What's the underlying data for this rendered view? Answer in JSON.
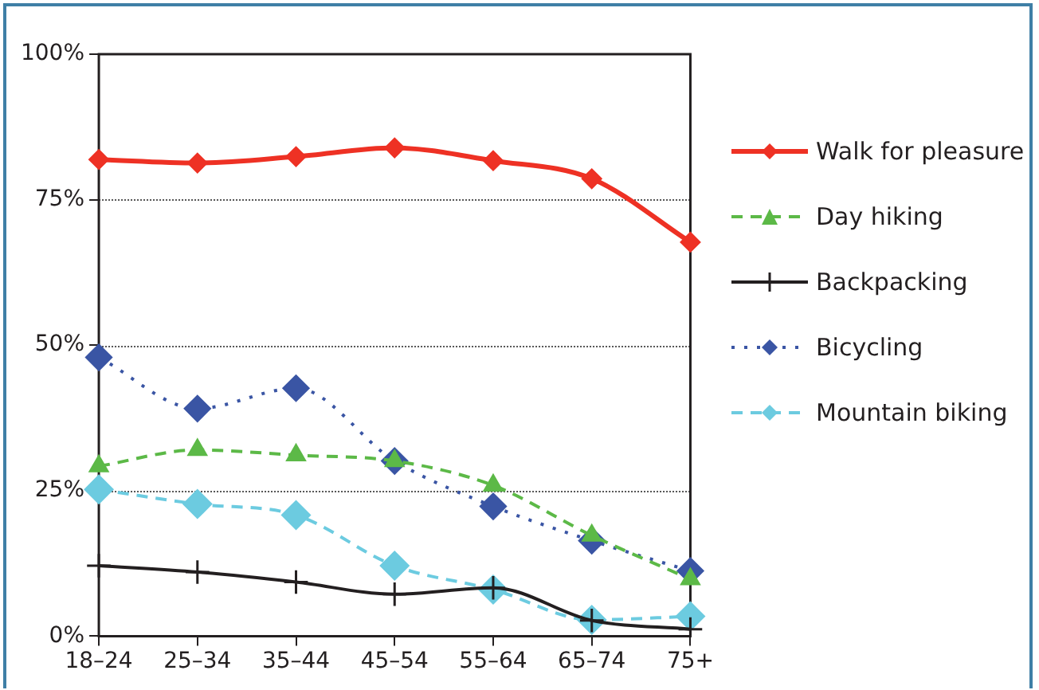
{
  "chart_data": {
    "type": "line",
    "categories": [
      "18–24",
      "25–34",
      "35–44",
      "45–54",
      "55–64",
      "65–74",
      "75+"
    ],
    "series": [
      {
        "name": "Walk for pleasure",
        "color": "#ee3124",
        "marker": "diamond",
        "line_style": "solid",
        "values": [
          81.9,
          81.3,
          82.4,
          83.9,
          81.7,
          78.6,
          67.7
        ]
      },
      {
        "name": "Day hiking",
        "color": "#5cb947",
        "marker": "triangle",
        "line_style": "dashed",
        "values": [
          29.2,
          32,
          31.1,
          30.1,
          25.9,
          17.3,
          9.8
        ]
      },
      {
        "name": "Backpacking",
        "color": "#231f20",
        "marker": "cross",
        "line_style": "solid",
        "values": [
          12.1,
          11,
          9.3,
          7.2,
          8.3,
          2.7,
          1.2
        ]
      },
      {
        "name": "Bicycling",
        "color": "#3a55a4",
        "marker": "diamond",
        "line_style": "dotted",
        "values": [
          47.9,
          39.1,
          42.6,
          30.1,
          22.3,
          16.4,
          11.2
        ]
      },
      {
        "name": "Mountain biking",
        "color": "#6ccbe0",
        "marker": "diamond",
        "line_style": "dashed",
        "values": [
          25.2,
          22.7,
          20.8,
          12.1,
          8,
          2.8,
          3.4
        ]
      }
    ],
    "ylim": [
      0,
      100
    ],
    "yticks": [
      {
        "value": 0,
        "label": "0%"
      },
      {
        "value": 25,
        "label": "25%"
      },
      {
        "value": 50,
        "label": "50%"
      },
      {
        "value": 75,
        "label": "75%"
      },
      {
        "value": 100,
        "label": "100%"
      }
    ],
    "grid": "y",
    "legend": "right"
  }
}
